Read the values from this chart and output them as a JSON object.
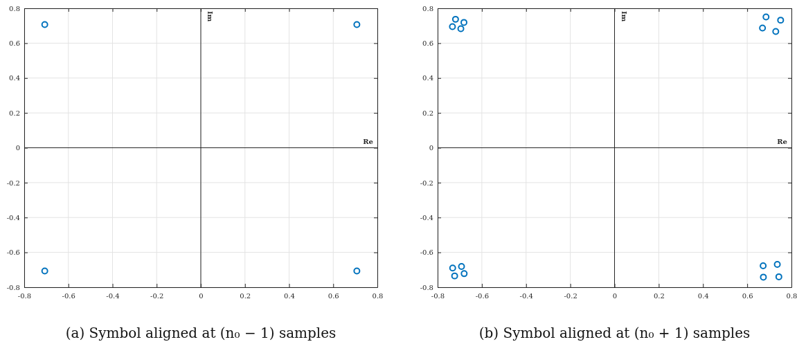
{
  "chart_data": [
    {
      "type": "scatter",
      "title": "(a) Symbol aligned at (n₀ − 1) samples",
      "marker": "circle",
      "grid": true,
      "xlim": [
        -0.8,
        0.8
      ],
      "ylim": [
        -0.8,
        0.8
      ],
      "xticks": [
        -0.8,
        -0.6,
        -0.4,
        -0.2,
        0,
        0.2,
        0.4,
        0.6,
        0.8
      ],
      "yticks": [
        -0.8,
        -0.6,
        -0.4,
        -0.2,
        0,
        0.2,
        0.4,
        0.6,
        0.8
      ],
      "ref_lines": [
        {
          "axis": "y",
          "value": 0,
          "label": "Re",
          "color": "#262626"
        },
        {
          "axis": "x",
          "value": 0,
          "label": "Im",
          "color": "#262626"
        }
      ],
      "series": [
        {
          "color": "#0072bd",
          "x": [
            -0.707,
            0.707,
            -0.707,
            0.707
          ],
          "values": [
            0.707,
            0.707,
            -0.707,
            -0.707
          ]
        }
      ]
    },
    {
      "type": "scatter",
      "title": "(b) Symbol aligned at (n₀ + 1) samples",
      "marker": "circle",
      "grid": true,
      "xlim": [
        -0.8,
        0.8
      ],
      "ylim": [
        -0.8,
        0.8
      ],
      "xticks": [
        -0.8,
        -0.6,
        -0.4,
        -0.2,
        0,
        0.2,
        0.4,
        0.6,
        0.8
      ],
      "yticks": [
        -0.8,
        -0.6,
        -0.4,
        -0.2,
        0,
        0.2,
        0.4,
        0.6,
        0.8
      ],
      "ref_lines": [
        {
          "axis": "y",
          "value": 0,
          "label": "Re",
          "color": "#262626"
        },
        {
          "axis": "x",
          "value": 0,
          "label": "Im",
          "color": "#262626"
        }
      ],
      "series": [
        {
          "color": "#0072bd",
          "x": [
            -0.733,
            -0.719,
            -0.681,
            -0.695,
            0.685,
            0.751,
            0.669,
            0.729,
            -0.732,
            -0.692,
            -0.723,
            -0.68,
            0.672,
            0.736,
            0.673,
            0.743
          ],
          "values": [
            0.695,
            0.737,
            0.719,
            0.683,
            0.75,
            0.732,
            0.687,
            0.667,
            -0.69,
            -0.681,
            -0.735,
            -0.722,
            -0.677,
            -0.669,
            -0.742,
            -0.74
          ]
        }
      ]
    }
  ]
}
